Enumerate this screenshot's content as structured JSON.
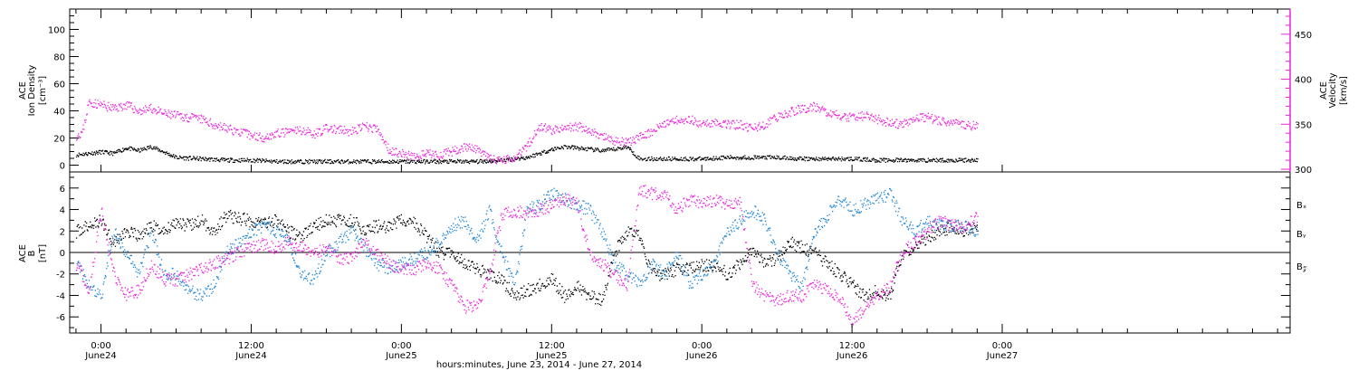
{
  "colors": {
    "black": "#000000",
    "magenta": "#ee22dd",
    "blue": "#1f86d6",
    "axis": "#000000"
  },
  "xaxis": {
    "title": "hours:minutes, June 23, 2014 - June 27, 2014",
    "range_hours": [
      -2.5,
      95
    ],
    "ticks": [
      {
        "h": 0,
        "time": "0:00",
        "day": "June24"
      },
      {
        "h": 12,
        "time": "12:00",
        "day": "June24"
      },
      {
        "h": 24,
        "time": "0:00",
        "day": "June25"
      },
      {
        "h": 36,
        "time": "12:00",
        "day": "June25"
      },
      {
        "h": 48,
        "time": "0:00",
        "day": "June26"
      },
      {
        "h": 60,
        "time": "12:00",
        "day": "June26"
      },
      {
        "h": 72,
        "time": "0:00",
        "day": "June27"
      }
    ]
  },
  "chart_data": [
    {
      "type": "scatter",
      "ylabel_left": [
        "ACE",
        "Ion Density",
        "[cm⁻³]"
      ],
      "ylabel_right": [
        "ACE",
        "Velocity",
        "[km/s]"
      ],
      "ylim_left": [
        -5,
        115
      ],
      "ylim_right": [
        297,
        478
      ],
      "yticks_left": [
        0,
        20,
        40,
        60,
        80,
        100
      ],
      "yticks_right": [
        300,
        350,
        400,
        450
      ],
      "series": [
        {
          "color": "black",
          "axis": "left",
          "x": [
            -2,
            0,
            1,
            2,
            3,
            4,
            6,
            8,
            10,
            12,
            14,
            16,
            18,
            20,
            22,
            24,
            26,
            28,
            30,
            32,
            34,
            35,
            36,
            37,
            38,
            39,
            40,
            41,
            42,
            43,
            44,
            46,
            48,
            50,
            52,
            54,
            56,
            58,
            60,
            62,
            64,
            66,
            68,
            70
          ],
          "y": [
            8,
            10,
            9,
            13,
            11,
            14,
            6,
            5,
            4,
            4,
            3,
            3,
            3,
            3,
            3,
            3,
            3,
            3,
            3,
            4,
            6,
            9,
            12,
            14,
            13,
            12,
            11,
            12,
            14,
            5,
            5,
            5,
            5,
            6,
            6,
            6,
            5,
            5,
            5,
            4,
            4,
            4,
            4,
            4
          ]
        },
        {
          "color": "magenta",
          "axis": "right",
          "x": [
            -2,
            -1.5,
            -1,
            0,
            1,
            2,
            3,
            4,
            5,
            6,
            7,
            8,
            9,
            10,
            11,
            12,
            13,
            14,
            15,
            16,
            17,
            18,
            19,
            20,
            21,
            22,
            23,
            24,
            25,
            26,
            27,
            28,
            29,
            30,
            31,
            32,
            33,
            34,
            35,
            36,
            37,
            38,
            39,
            40,
            41,
            42,
            43,
            44,
            45,
            46,
            47,
            48,
            49,
            50,
            51,
            52,
            53,
            54,
            55,
            56,
            57,
            58,
            59,
            60,
            61,
            62,
            63,
            64,
            65,
            66,
            67,
            68,
            69,
            70
          ],
          "y": [
            338,
            342,
            375,
            372,
            368,
            372,
            365,
            368,
            362,
            360,
            358,
            356,
            350,
            346,
            342,
            338,
            336,
            340,
            342,
            344,
            340,
            346,
            344,
            342,
            348,
            345,
            322,
            318,
            314,
            318,
            316,
            320,
            326,
            322,
            312,
            310,
            314,
            326,
            348,
            344,
            346,
            348,
            344,
            336,
            332,
            330,
            336,
            342,
            352,
            356,
            356,
            350,
            354,
            350,
            350,
            346,
            350,
            358,
            364,
            368,
            370,
            364,
            360,
            358,
            360,
            356,
            352,
            350,
            358,
            358,
            354,
            352,
            350,
            348
          ]
        }
      ]
    },
    {
      "type": "scatter",
      "ylabel_left": [
        "ACE",
        "B",
        "[nT]"
      ],
      "ylim": [
        -7.5,
        7.5
      ],
      "yticks": [
        -6,
        -4,
        -2,
        0,
        2,
        4,
        6
      ],
      "legend": [
        "Bₓ",
        "Bᵧ",
        "B𝓏"
      ],
      "series": [
        {
          "name": "Bₓ",
          "color": "black",
          "x": [
            -2,
            -1,
            0,
            1,
            2,
            3,
            4,
            5,
            6,
            7,
            8,
            9,
            10,
            11,
            12,
            13,
            14,
            15,
            16,
            17,
            18,
            19,
            20,
            21,
            22,
            23,
            24,
            25,
            26,
            27,
            28,
            29,
            30,
            31,
            32,
            33,
            34,
            35,
            36,
            37,
            38,
            39,
            40,
            41,
            42,
            43,
            44,
            45,
            46,
            47,
            48,
            49,
            50,
            51,
            52,
            53,
            54,
            55,
            56,
            57,
            58,
            59,
            60,
            61,
            62,
            63,
            64,
            65,
            66,
            67,
            68,
            69,
            70
          ],
          "y": [
            2,
            2.5,
            3,
            1,
            2,
            1.5,
            2.5,
            2,
            3,
            2.5,
            3,
            2,
            3.5,
            3.2,
            3,
            2.8,
            3,
            2,
            1.5,
            2.5,
            3,
            3,
            3,
            2.2,
            2.5,
            2.5,
            3,
            2.8,
            1.5,
            0,
            0,
            -1,
            -1.5,
            -2,
            -2.5,
            -4,
            -3.5,
            -3,
            -2.5,
            -4,
            -3,
            -4,
            -4.5,
            0,
            2,
            1.5,
            -2,
            -2,
            -1.5,
            -1.5,
            -1.2,
            -1,
            -2,
            -1,
            0,
            -1,
            -0.5,
            1,
            0.5,
            0,
            -1,
            -2,
            -3,
            -4,
            -3.5,
            -4,
            0,
            0.5,
            1.5,
            2,
            2.5,
            2,
            2.5
          ]
        },
        {
          "name": "Bᵧ",
          "color": "blue",
          "x": [
            -2,
            -1,
            0,
            1,
            2,
            3,
            4,
            5,
            6,
            7,
            8,
            9,
            10,
            11,
            12,
            13,
            14,
            15,
            16,
            17,
            18,
            19,
            20,
            21,
            22,
            23,
            24,
            25,
            26,
            27,
            28,
            29,
            30,
            31,
            32,
            33,
            34,
            35,
            36,
            37,
            38,
            39,
            40,
            41,
            42,
            43,
            44,
            45,
            46,
            47,
            48,
            49,
            50,
            51,
            52,
            53,
            54,
            55,
            56,
            57,
            58,
            59,
            60,
            61,
            62,
            63,
            64,
            65,
            66,
            67,
            68,
            69,
            70
          ],
          "y": [
            -1,
            -3,
            -4,
            2,
            0,
            -2,
            2,
            -2,
            -2,
            -3.5,
            -4,
            -3,
            0,
            1,
            2,
            2.5,
            2,
            1,
            -2,
            -2.5,
            0,
            1,
            2,
            0.5,
            -1,
            -1.5,
            -1,
            -0.5,
            0,
            1,
            2.5,
            3,
            1,
            4,
            0,
            -3,
            4,
            4.5,
            5.5,
            5,
            4.5,
            4,
            2,
            -1,
            -2,
            -3,
            -1,
            -2,
            0,
            -3,
            -2,
            -1,
            2,
            3,
            4,
            3,
            0,
            -2,
            -3,
            2,
            3.5,
            5,
            4,
            4.5,
            5,
            5.5,
            3,
            2,
            3,
            2.5,
            2.5,
            2.5,
            2
          ]
        },
        {
          "name": "B𝓏",
          "color": "magenta",
          "x": [
            -2,
            -1,
            0,
            1,
            2,
            3,
            4,
            5,
            6,
            7,
            8,
            9,
            10,
            11,
            12,
            13,
            14,
            15,
            16,
            17,
            18,
            19,
            20,
            21,
            22,
            23,
            24,
            25,
            26,
            27,
            28,
            29,
            30,
            31,
            32,
            33,
            34,
            35,
            36,
            37,
            38,
            39,
            40,
            41,
            42,
            43,
            44,
            45,
            46,
            47,
            48,
            49,
            50,
            51,
            52,
            53,
            54,
            55,
            56,
            57,
            58,
            59,
            60,
            61,
            62,
            63,
            64,
            65,
            66,
            67,
            68,
            69,
            70
          ],
          "y": [
            -1,
            -3.5,
            4,
            -2,
            -4,
            -3.5,
            -1,
            -2.5,
            -2.5,
            -2,
            -1.5,
            -1,
            -0.5,
            0,
            0.5,
            0.8,
            0.5,
            1,
            0.5,
            0,
            0.5,
            -0.5,
            -0.5,
            1,
            0,
            -1,
            -1.5,
            -1.5,
            -1,
            -1.5,
            -3,
            -5,
            -5,
            -2,
            3.5,
            4,
            3.5,
            4,
            4.5,
            5,
            4.5,
            0,
            -1,
            -2,
            -3,
            6,
            5.5,
            5.5,
            4,
            5,
            4.5,
            5,
            4.5,
            5,
            -3,
            -4,
            -4.5,
            -4,
            -4,
            -3,
            -3.5,
            -4,
            -6.5,
            -5,
            -4,
            -3,
            0,
            1,
            2,
            3,
            2.5,
            2.5,
            3.5
          ]
        }
      ]
    }
  ]
}
